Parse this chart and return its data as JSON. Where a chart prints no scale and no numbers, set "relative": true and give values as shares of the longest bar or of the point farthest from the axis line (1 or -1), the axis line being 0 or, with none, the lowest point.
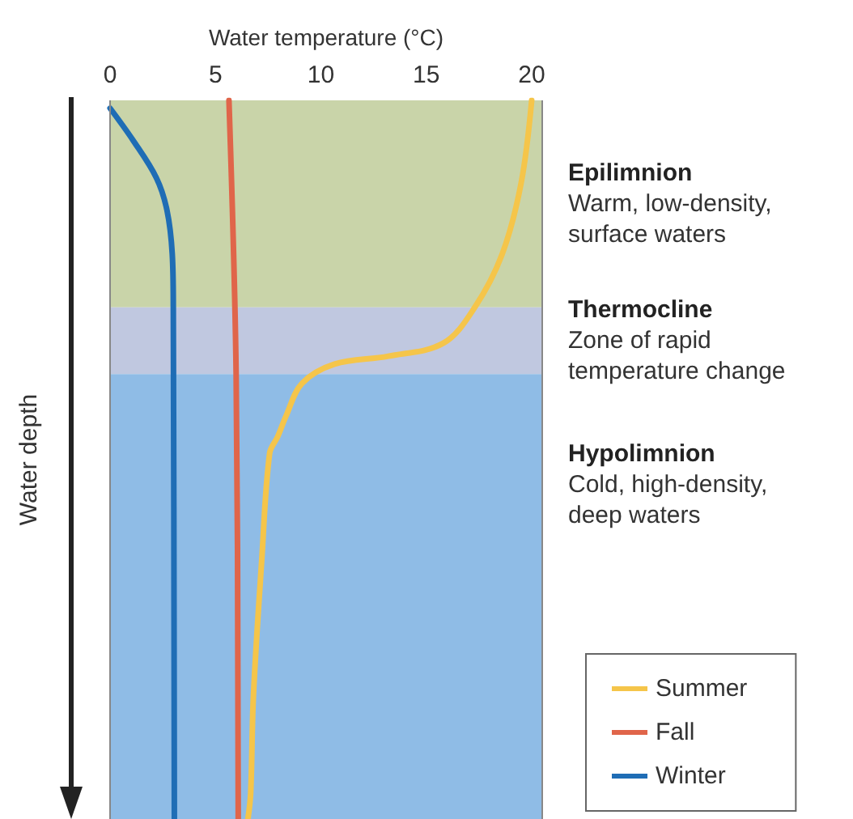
{
  "chart_data": {
    "type": "line",
    "xlabel": "Water temperature (°C)",
    "ylabel": "Water depth",
    "relative": true,
    "xlim": [
      0,
      20.5
    ],
    "xticks": [
      0,
      5,
      10,
      15,
      20
    ],
    "legend": "bottom right",
    "grid": false,
    "marker": "none",
    "series": [
      {
        "name": "Summer",
        "color": "#f5c54a",
        "x": [
          20.0,
          19.5,
          18.6,
          17.3,
          15.8,
          13.2,
          10.65,
          9.1,
          8.35,
          7.95,
          7.57,
          7.19,
          6.8,
          6.67,
          6.54
        ],
        "values": [
          0,
          -0.115,
          -0.214,
          -0.288,
          -0.338,
          -0.356,
          -0.367,
          -0.394,
          -0.439,
          -0.468,
          -0.491,
          -0.642,
          -0.829,
          -0.964,
          -1
        ]
      },
      {
        "name": "Fall",
        "color": "#e0654a",
        "x": [
          5.64,
          5.98,
          6.08
        ],
        "values": [
          0,
          -0.381,
          -1
        ]
      },
      {
        "name": "Winter",
        "color": "#1f6db5",
        "x": [
          0,
          1.1,
          2.2,
          2.7,
          2.95,
          3.0,
          3.05
        ],
        "values": [
          -0.011,
          -0.056,
          -0.108,
          -0.153,
          -0.214,
          -0.288,
          -1
        ]
      }
    ],
    "bands": [
      {
        "axis": "y",
        "from": 0,
        "to": -0.288,
        "label": "Epilimnion\nWarm, low-density,\nsurface waters",
        "color": "#c9d4a9"
      },
      {
        "axis": "y",
        "from": -0.288,
        "to": -0.381,
        "label": "Thermocline\nZone of rapid\ntemperature change",
        "color": "#c0c8e0"
      },
      {
        "axis": "y",
        "from": -0.381,
        "to": -1,
        "label": "Hypolimnion\nCold, high-density,\ndeep waters",
        "color": "#8fbce6"
      }
    ]
  }
}
